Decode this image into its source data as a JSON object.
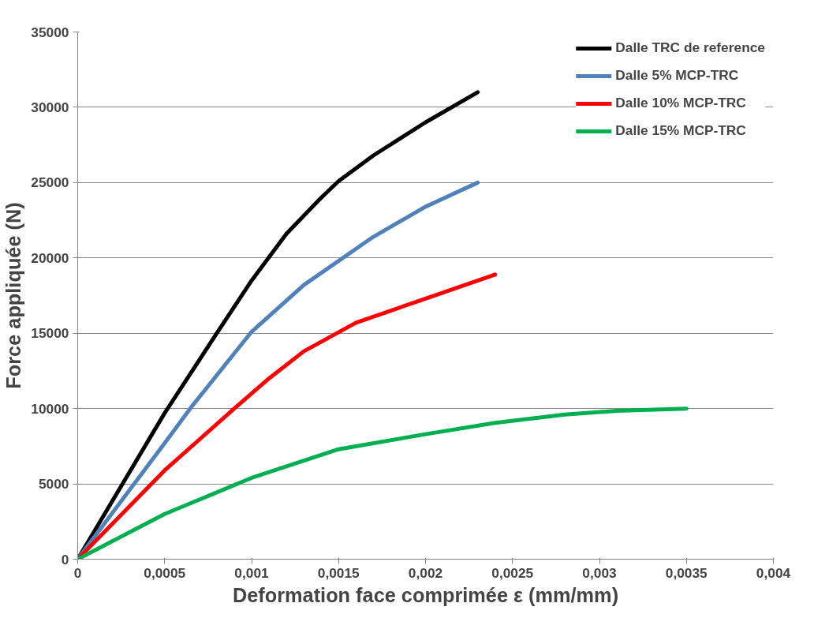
{
  "chart_data": {
    "type": "line",
    "xlabel": "Deformation face comprimée ε (mm/mm)",
    "ylabel": "Force appliquée (N)",
    "xlim": [
      0,
      0.004
    ],
    "xticks": [
      {
        "value": 0,
        "label": "0"
      },
      {
        "value": 0.0005,
        "label": "0,0005"
      },
      {
        "value": 0.001,
        "label": "0,001"
      },
      {
        "value": 0.0015,
        "label": "0,0015"
      },
      {
        "value": 0.002,
        "label": "0,002"
      },
      {
        "value": 0.0025,
        "label": "0,0025"
      },
      {
        "value": 0.003,
        "label": "0,003"
      },
      {
        "value": 0.0035,
        "label": "0,0035"
      },
      {
        "value": 0.004,
        "label": "0,004"
      }
    ],
    "ylim": [
      0,
      35000
    ],
    "yticks": [
      0,
      5000,
      10000,
      15000,
      20000,
      25000,
      30000,
      35000
    ],
    "grid": "y",
    "legend": "top right",
    "marker": "none",
    "line_style": "solid",
    "series": [
      {
        "name": "Dalle TRC de reference",
        "color": "#000000",
        "x": [
          0,
          0.0005,
          0.0008,
          0.001,
          0.0012,
          0.0014,
          0.0015,
          0.0017,
          0.002,
          0.0023
        ],
        "values": [
          0,
          9700,
          15000,
          18500,
          21600,
          24000,
          25100,
          26800,
          29000,
          31000
        ]
      },
      {
        "name": "Dalle 5% MCP-TRC",
        "color": "#4f81bd",
        "x": [
          0,
          0.0005,
          0.00066,
          0.001,
          0.0013,
          0.0017,
          0.002,
          0.0023
        ],
        "values": [
          0,
          7700,
          10200,
          15100,
          18200,
          21400,
          23400,
          25000
        ]
      },
      {
        "name": "Dalle 10% MCP-TRC",
        "color": "#ff0000",
        "x": [
          0,
          0.0005,
          0.0009,
          0.0011,
          0.0013,
          0.0016,
          0.002,
          0.0024
        ],
        "values": [
          0,
          5900,
          10000,
          12000,
          13800,
          15700,
          17300,
          18900
        ]
      },
      {
        "name": "Dalle 15% MCP-TRC",
        "color": "#00b050",
        "x": [
          0,
          0.0005,
          0.001,
          0.0015,
          0.002,
          0.0024,
          0.0028,
          0.0031,
          0.0035
        ],
        "values": [
          0,
          3000,
          5400,
          7300,
          8300,
          9050,
          9600,
          9850,
          10000
        ]
      }
    ]
  }
}
